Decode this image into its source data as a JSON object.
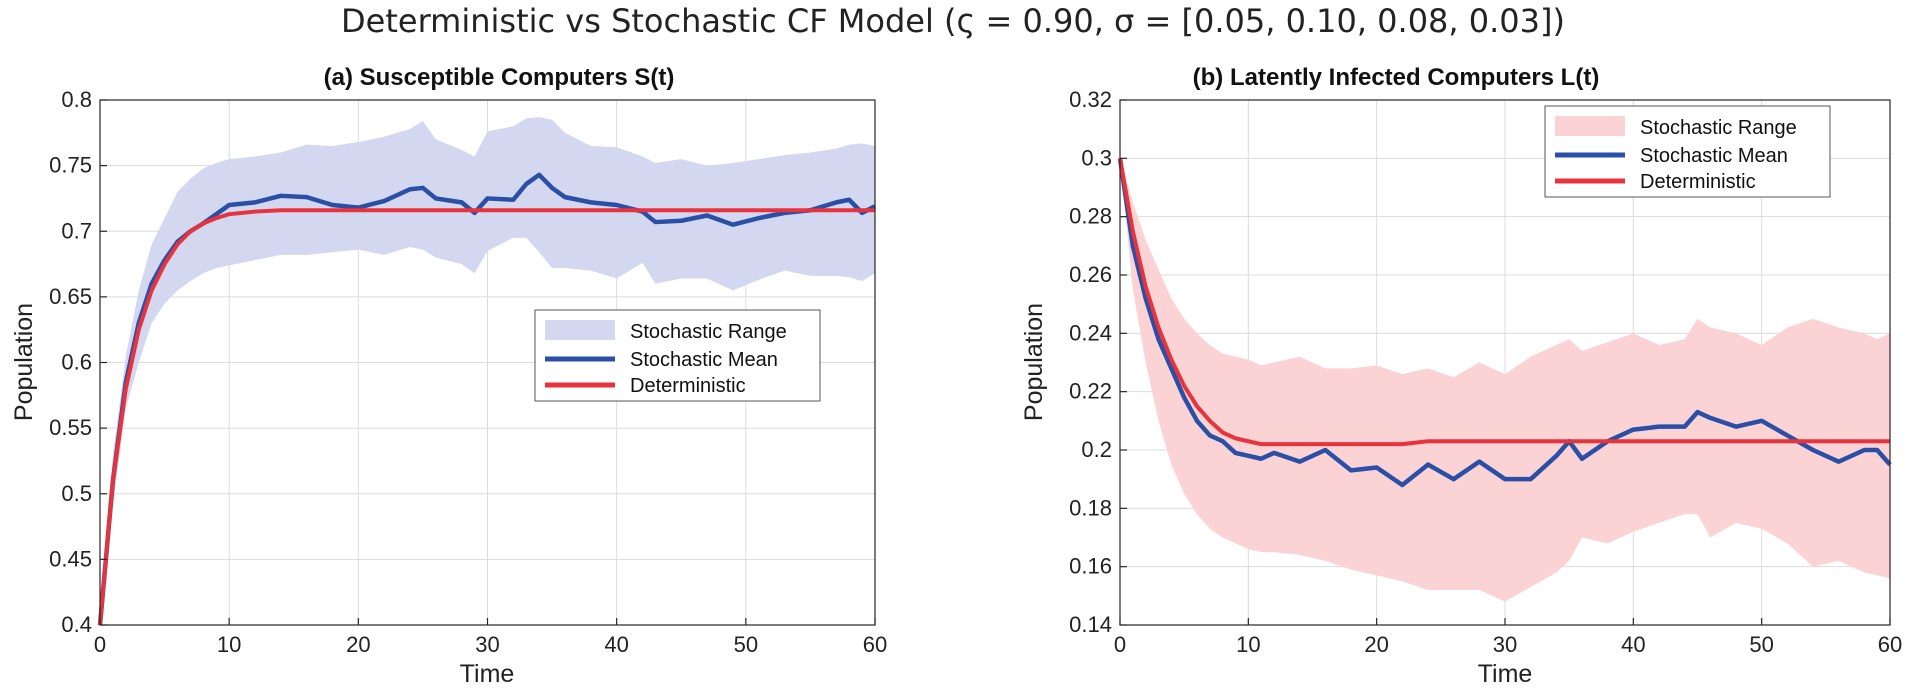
{
  "figure_title": "Deterministic vs Stochastic CF Model (ς = 0.90, σ = [0.05, 0.10, 0.08, 0.03])",
  "colors": {
    "mean": "#2a4fa6",
    "deterministic": "#e8323c",
    "range_a": "#d3d8f0",
    "range_b": "#fcd3d4"
  },
  "chart_data": [
    {
      "type": "line",
      "title": "(a) Susceptible Computers S(t)",
      "xlabel": "Time",
      "ylabel": "Population",
      "xlim": [
        0,
        60
      ],
      "ylim": [
        0.4,
        0.8
      ],
      "xticks": [
        0,
        10,
        20,
        30,
        40,
        50,
        60
      ],
      "yticks": [
        0.4,
        0.45,
        0.5,
        0.55,
        0.6,
        0.65,
        0.7,
        0.75,
        0.8
      ],
      "ytick_labels": [
        "0.4",
        "0.45",
        "0.5",
        "0.55",
        "0.6",
        "0.65",
        "0.7",
        "0.75",
        "0.8"
      ],
      "grid": true,
      "legend_position": "center-right",
      "legend": [
        "Stochastic Range",
        "Stochastic Mean",
        "Deterministic"
      ],
      "x": [
        0,
        1,
        2,
        3,
        4,
        5,
        6,
        7,
        8,
        9,
        10,
        12,
        14,
        16,
        18,
        20,
        22,
        24,
        25,
        26,
        28,
        29,
        30,
        32,
        33,
        34,
        35,
        36,
        38,
        40,
        42,
        43,
        45,
        47,
        49,
        51,
        53,
        55,
        57,
        58,
        59,
        60
      ],
      "series": [
        {
          "name": "Deterministic",
          "values": [
            0.4,
            0.51,
            0.58,
            0.625,
            0.655,
            0.675,
            0.69,
            0.7,
            0.706,
            0.71,
            0.713,
            0.715,
            0.716,
            0.716,
            0.716,
            0.716,
            0.716,
            0.716,
            0.716,
            0.716,
            0.716,
            0.716,
            0.716,
            0.716,
            0.716,
            0.716,
            0.716,
            0.716,
            0.716,
            0.716,
            0.716,
            0.716,
            0.716,
            0.716,
            0.716,
            0.716,
            0.716,
            0.716,
            0.716,
            0.716,
            0.716,
            0.716
          ]
        },
        {
          "name": "Stochastic Mean",
          "values": [
            0.4,
            0.51,
            0.585,
            0.63,
            0.66,
            0.678,
            0.692,
            0.7,
            0.706,
            0.713,
            0.72,
            0.722,
            0.727,
            0.726,
            0.72,
            0.718,
            0.723,
            0.732,
            0.733,
            0.725,
            0.722,
            0.714,
            0.725,
            0.724,
            0.736,
            0.743,
            0.733,
            0.726,
            0.722,
            0.72,
            0.715,
            0.707,
            0.708,
            0.712,
            0.705,
            0.71,
            0.714,
            0.716,
            0.722,
            0.724,
            0.714,
            0.719
          ]
        },
        {
          "name": "Stochastic Range Upper",
          "values": [
            0.4,
            0.53,
            0.605,
            0.655,
            0.69,
            0.71,
            0.73,
            0.74,
            0.748,
            0.752,
            0.755,
            0.757,
            0.76,
            0.766,
            0.765,
            0.768,
            0.772,
            0.778,
            0.784,
            0.77,
            0.762,
            0.757,
            0.776,
            0.78,
            0.786,
            0.787,
            0.785,
            0.775,
            0.765,
            0.764,
            0.757,
            0.752,
            0.755,
            0.75,
            0.752,
            0.755,
            0.758,
            0.76,
            0.763,
            0.766,
            0.767,
            0.765
          ]
        },
        {
          "name": "Stochastic Range Lower",
          "values": [
            0.4,
            0.49,
            0.565,
            0.6,
            0.63,
            0.645,
            0.655,
            0.662,
            0.668,
            0.672,
            0.674,
            0.678,
            0.682,
            0.682,
            0.684,
            0.686,
            0.682,
            0.688,
            0.686,
            0.68,
            0.675,
            0.668,
            0.685,
            0.695,
            0.695,
            0.684,
            0.672,
            0.672,
            0.67,
            0.664,
            0.676,
            0.66,
            0.664,
            0.664,
            0.655,
            0.663,
            0.67,
            0.666,
            0.666,
            0.665,
            0.662,
            0.668
          ]
        }
      ]
    },
    {
      "type": "line",
      "title": "(b) Latently Infected Computers L(t)",
      "xlabel": "Time",
      "ylabel": "Population",
      "xlim": [
        0,
        60
      ],
      "ylim": [
        0.14,
        0.32
      ],
      "xticks": [
        0,
        10,
        20,
        30,
        40,
        50,
        60
      ],
      "yticks": [
        0.14,
        0.16,
        0.18,
        0.2,
        0.22,
        0.24,
        0.26,
        0.28,
        0.3,
        0.32
      ],
      "ytick_labels": [
        "0.14",
        "0.16",
        "0.18",
        "0.2",
        "0.22",
        "0.24",
        "0.26",
        "0.28",
        "0.3",
        "0.32"
      ],
      "grid": true,
      "legend_position": "top-right",
      "legend": [
        "Stochastic Range",
        "Stochastic Mean",
        "Deterministic"
      ],
      "x": [
        0,
        1,
        2,
        3,
        4,
        5,
        6,
        7,
        8,
        9,
        10,
        11,
        12,
        14,
        16,
        18,
        20,
        22,
        24,
        26,
        28,
        30,
        32,
        34,
        35,
        36,
        38,
        40,
        42,
        44,
        45,
        46,
        48,
        50,
        52,
        54,
        56,
        58,
        59,
        60
      ],
      "series": [
        {
          "name": "Deterministic",
          "values": [
            0.3,
            0.275,
            0.256,
            0.242,
            0.231,
            0.222,
            0.215,
            0.21,
            0.206,
            0.204,
            0.203,
            0.202,
            0.202,
            0.202,
            0.202,
            0.202,
            0.202,
            0.202,
            0.203,
            0.203,
            0.203,
            0.203,
            0.203,
            0.203,
            0.203,
            0.203,
            0.203,
            0.203,
            0.203,
            0.203,
            0.203,
            0.203,
            0.203,
            0.203,
            0.203,
            0.203,
            0.203,
            0.203,
            0.203,
            0.203
          ]
        },
        {
          "name": "Stochastic Mean",
          "values": [
            0.3,
            0.27,
            0.252,
            0.238,
            0.228,
            0.218,
            0.21,
            0.205,
            0.203,
            0.199,
            0.198,
            0.197,
            0.199,
            0.196,
            0.2,
            0.193,
            0.194,
            0.188,
            0.195,
            0.19,
            0.196,
            0.19,
            0.19,
            0.198,
            0.203,
            0.197,
            0.203,
            0.207,
            0.208,
            0.208,
            0.213,
            0.211,
            0.208,
            0.21,
            0.205,
            0.2,
            0.196,
            0.2,
            0.2,
            0.195
          ]
        },
        {
          "name": "Stochastic Range Upper",
          "values": [
            0.3,
            0.285,
            0.272,
            0.262,
            0.252,
            0.245,
            0.24,
            0.236,
            0.233,
            0.232,
            0.231,
            0.229,
            0.23,
            0.232,
            0.228,
            0.228,
            0.229,
            0.226,
            0.228,
            0.225,
            0.23,
            0.226,
            0.232,
            0.236,
            0.238,
            0.234,
            0.237,
            0.24,
            0.236,
            0.238,
            0.245,
            0.242,
            0.24,
            0.236,
            0.242,
            0.245,
            0.242,
            0.24,
            0.238,
            0.24
          ]
        },
        {
          "name": "Stochastic Range Lower",
          "values": [
            0.3,
            0.255,
            0.23,
            0.21,
            0.195,
            0.185,
            0.178,
            0.173,
            0.17,
            0.168,
            0.166,
            0.165,
            0.165,
            0.164,
            0.162,
            0.159,
            0.157,
            0.155,
            0.152,
            0.152,
            0.152,
            0.148,
            0.153,
            0.158,
            0.162,
            0.17,
            0.168,
            0.172,
            0.175,
            0.178,
            0.178,
            0.17,
            0.175,
            0.173,
            0.168,
            0.16,
            0.162,
            0.158,
            0.157,
            0.156
          ]
        }
      ]
    }
  ]
}
